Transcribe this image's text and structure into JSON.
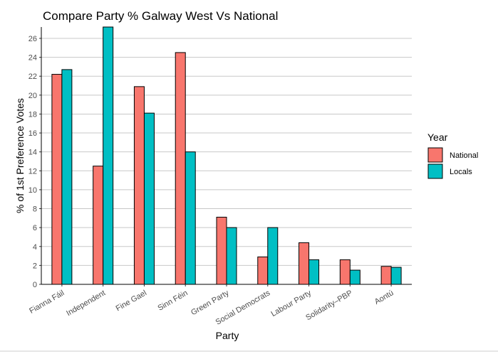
{
  "chart_data": {
    "type": "bar",
    "title": "Compare Party % Galway West Vs National",
    "xlabel": "Party",
    "ylabel": "% of 1st Preference Votes",
    "categories": [
      "Fianna Fáil",
      "Independent",
      "Fine Gael",
      "Sinn Féin",
      "Green Party",
      "Social Democrats",
      "Labour Party",
      "Solidarity–PBP",
      "Aontú"
    ],
    "series": [
      {
        "name": "National",
        "color": "#F8766D",
        "values": [
          22.2,
          12.5,
          20.9,
          24.5,
          7.1,
          2.9,
          4.4,
          2.6,
          1.9
        ]
      },
      {
        "name": "Locals",
        "color": "#00BFC4",
        "values": [
          22.7,
          27.2,
          18.1,
          14.0,
          6.0,
          6.0,
          2.6,
          1.5,
          1.8
        ]
      }
    ],
    "ylim": [
      0,
      27.2
    ],
    "yticks": [
      0,
      2,
      4,
      6,
      8,
      10,
      12,
      14,
      16,
      18,
      20,
      22,
      24,
      26
    ],
    "legend_title": "Year",
    "legend_position": "right",
    "grid": "horizontal"
  }
}
